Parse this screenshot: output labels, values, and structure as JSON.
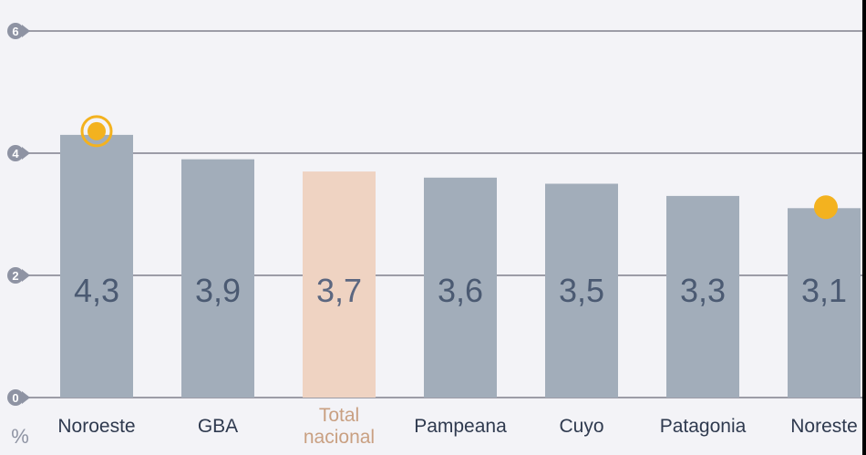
{
  "chart_data": {
    "type": "bar",
    "ylabel": "%",
    "ylim": [
      0,
      6
    ],
    "yticks": [
      "0",
      "2",
      "4",
      "6"
    ],
    "grid": true,
    "categories": [
      "Noroeste",
      "GBA",
      "Total nacional",
      "Pampeana",
      "Cuyo",
      "Patagonia",
      "Noreste"
    ],
    "category_lines": [
      [
        "Noroeste"
      ],
      [
        "GBA"
      ],
      [
        "Total",
        "nacional"
      ],
      [
        "Pampeana"
      ],
      [
        "Cuyo"
      ],
      [
        "Patagonia"
      ],
      [
        "Noreste"
      ]
    ],
    "values": [
      4.3,
      3.9,
      3.7,
      3.6,
      3.5,
      3.3,
      3.1
    ],
    "value_labels": [
      "4,3",
      "3,9",
      "3,7",
      "3,6",
      "3,5",
      "3,3",
      "3,1"
    ],
    "highlight_index": 2,
    "markers": [
      {
        "index": 0,
        "style": "ring"
      },
      {
        "index": 6,
        "style": "dot"
      }
    ],
    "colors": {
      "bar": "#a2adba",
      "highlight_bar": "#efd3c2",
      "value_text": "#4b5a72",
      "highlight_value_text": "#5c6780",
      "category_text": "#2f3a4f",
      "highlight_category_text": "#c9a082",
      "grid": "#9c9ca7",
      "tick_circle": "#8e93a3",
      "marker": "#f3b21f",
      "background": "#f3f3f7"
    }
  }
}
